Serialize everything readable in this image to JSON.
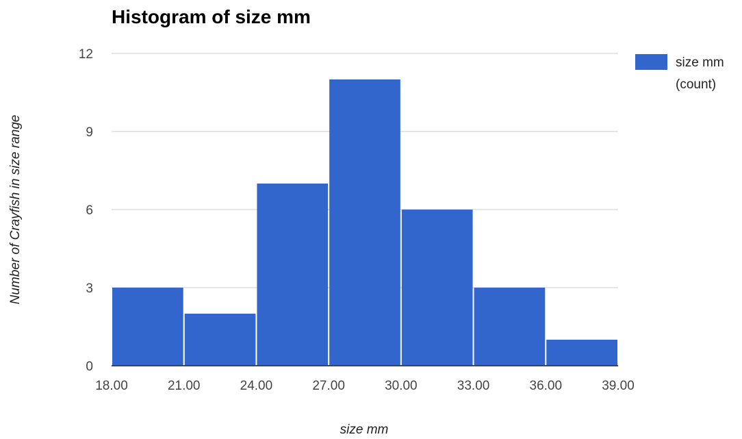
{
  "chart_data": {
    "type": "bar",
    "title": "Histogram of size mm",
    "xlabel": "size mm",
    "ylabel": "Number of Crayfish in size range",
    "bin_edges": [
      18,
      21,
      24,
      27,
      30,
      33,
      36,
      39
    ],
    "x_tick_labels": [
      "18.00",
      "21.00",
      "24.00",
      "27.00",
      "30.00",
      "33.00",
      "36.00",
      "39.00"
    ],
    "xlim": [
      18,
      39
    ],
    "ylim": [
      0,
      12
    ],
    "y_ticks": [
      0,
      3,
      6,
      9,
      12
    ],
    "y_tick_labels": [
      "0",
      "3",
      "6",
      "9",
      "12"
    ],
    "grid": true,
    "series": [
      {
        "name": "size mm (count)",
        "values": [
          3,
          2,
          7,
          11,
          6,
          3,
          1
        ],
        "color": "#3366cc"
      }
    ],
    "legend": {
      "position": "right",
      "lines": [
        "size mm",
        "(count)"
      ]
    }
  }
}
